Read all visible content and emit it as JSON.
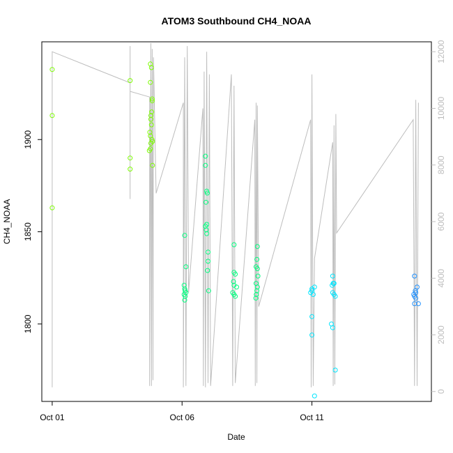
{
  "chart_data": {
    "type": "scatter",
    "title": "ATOM3 Southbound CH4_NOAA",
    "xlabel": "Date",
    "ylabel": "CH4_NOAA",
    "x_ticks": [
      {
        "day": 1,
        "label": "Oct 01"
      },
      {
        "day": 6,
        "label": "Oct 06"
      },
      {
        "day": 11,
        "label": "Oct 11"
      }
    ],
    "xlim": [
      0.6,
      15.6
    ],
    "ylim": [
      1758,
      1953
    ],
    "y_ticks": [
      1800,
      1850,
      1900
    ],
    "y2_label": "",
    "y2lim": [
      -350,
      12350
    ],
    "y2_ticks": [
      0,
      2000,
      4000,
      6000,
      8000,
      10000,
      12000
    ],
    "colors": {
      "early": "#7cfc00",
      "mid": "#00ff7f",
      "late": "#00e5ff",
      "end": "#1e90ff",
      "altitude_line": "#bdbdbd"
    },
    "points": [
      [
        1.0,
        1938
      ],
      [
        1.0,
        1913
      ],
      [
        1.0,
        1863
      ],
      [
        4.0,
        1932
      ],
      [
        4.0,
        1890
      ],
      [
        4.0,
        1884
      ],
      [
        4.78,
        1941
      ],
      [
        4.78,
        1931
      ],
      [
        4.82,
        1939
      ],
      [
        4.85,
        1922
      ],
      [
        4.85,
        1921
      ],
      [
        4.83,
        1915
      ],
      [
        4.8,
        1913
      ],
      [
        4.8,
        1911
      ],
      [
        4.82,
        1908
      ],
      [
        4.76,
        1904
      ],
      [
        4.78,
        1902
      ],
      [
        4.84,
        1900
      ],
      [
        4.86,
        1899
      ],
      [
        4.8,
        1898
      ],
      [
        4.78,
        1895
      ],
      [
        4.74,
        1894
      ],
      [
        4.86,
        1886
      ],
      [
        6.1,
        1848
      ],
      [
        6.15,
        1831
      ],
      [
        6.08,
        1821
      ],
      [
        6.1,
        1819
      ],
      [
        6.12,
        1818
      ],
      [
        6.15,
        1817
      ],
      [
        6.08,
        1816
      ],
      [
        6.12,
        1815
      ],
      [
        6.1,
        1813
      ],
      [
        6.9,
        1891
      ],
      [
        6.9,
        1886
      ],
      [
        6.95,
        1872
      ],
      [
        6.97,
        1871
      ],
      [
        6.92,
        1866
      ],
      [
        6.95,
        1854
      ],
      [
        6.9,
        1853
      ],
      [
        6.93,
        1851
      ],
      [
        6.95,
        1849
      ],
      [
        7.0,
        1839
      ],
      [
        7.0,
        1834
      ],
      [
        6.98,
        1829
      ],
      [
        7.02,
        1818
      ],
      [
        8.0,
        1843
      ],
      [
        8.0,
        1828
      ],
      [
        8.05,
        1827
      ],
      [
        7.98,
        1823
      ],
      [
        8.0,
        1821
      ],
      [
        8.1,
        1820
      ],
      [
        7.95,
        1817
      ],
      [
        8.0,
        1816
      ],
      [
        8.05,
        1815
      ],
      [
        8.9,
        1842
      ],
      [
        8.88,
        1835
      ],
      [
        8.85,
        1831
      ],
      [
        8.9,
        1830
      ],
      [
        8.92,
        1826
      ],
      [
        8.85,
        1822
      ],
      [
        8.9,
        1820
      ],
      [
        8.88,
        1818
      ],
      [
        8.86,
        1816
      ],
      [
        8.84,
        1814
      ],
      [
        11.0,
        1819
      ],
      [
        11.1,
        1820
      ],
      [
        11.0,
        1818
      ],
      [
        10.95,
        1817
      ],
      [
        11.05,
        1816
      ],
      [
        11.0,
        1804
      ],
      [
        11.0,
        1794
      ],
      [
        11.1,
        1761
      ],
      [
        11.8,
        1826
      ],
      [
        11.82,
        1822
      ],
      [
        11.85,
        1822
      ],
      [
        11.78,
        1821
      ],
      [
        11.8,
        1817
      ],
      [
        11.85,
        1816
      ],
      [
        11.9,
        1815
      ],
      [
        11.75,
        1800
      ],
      [
        11.8,
        1798
      ],
      [
        11.9,
        1775
      ],
      [
        14.95,
        1826
      ],
      [
        14.98,
        1818
      ],
      [
        15.0,
        1817
      ],
      [
        15.05,
        1820
      ],
      [
        14.92,
        1816
      ],
      [
        14.95,
        1815
      ],
      [
        15.0,
        1814
      ],
      [
        14.95,
        1811
      ],
      [
        15.1,
        1811
      ]
    ],
    "altitude": [
      [
        1.0,
        150
      ],
      [
        1.0,
        12000
      ],
      [
        4.0,
        10900
      ],
      [
        4.0,
        6800
      ],
      [
        4.0,
        12200
      ],
      [
        4.0,
        10600
      ],
      [
        4.75,
        10400
      ],
      [
        4.75,
        200
      ],
      [
        4.8,
        12300
      ],
      [
        4.82,
        200
      ],
      [
        4.85,
        12100
      ],
      [
        4.88,
        400
      ],
      [
        4.9,
        11800
      ],
      [
        5.0,
        7000
      ],
      [
        6.05,
        10200
      ],
      [
        6.05,
        150
      ],
      [
        6.1,
        11800
      ],
      [
        6.15,
        200
      ],
      [
        6.2,
        12200
      ],
      [
        6.25,
        3500
      ],
      [
        6.8,
        10000
      ],
      [
        6.82,
        200
      ],
      [
        6.85,
        11300
      ],
      [
        6.9,
        150
      ],
      [
        6.95,
        12000
      ],
      [
        7.0,
        300
      ],
      [
        7.05,
        11200
      ],
      [
        7.1,
        200
      ],
      [
        7.9,
        11200
      ],
      [
        7.95,
        200
      ],
      [
        8.0,
        10800
      ],
      [
        8.05,
        300
      ],
      [
        8.8,
        9600
      ],
      [
        8.82,
        200
      ],
      [
        8.85,
        10200
      ],
      [
        8.88,
        300
      ],
      [
        8.9,
        10100
      ],
      [
        8.95,
        3000
      ],
      [
        10.95,
        9600
      ],
      [
        10.97,
        150
      ],
      [
        11.0,
        11200
      ],
      [
        11.05,
        200
      ],
      [
        11.1,
        4700
      ],
      [
        11.8,
        8800
      ],
      [
        11.82,
        200
      ],
      [
        11.85,
        9400
      ],
      [
        11.88,
        250
      ],
      [
        11.92,
        9800
      ],
      [
        11.95,
        5600
      ],
      [
        14.9,
        9600
      ],
      [
        14.95,
        200
      ],
      [
        15.0,
        10300
      ],
      [
        15.05,
        200
      ],
      [
        15.1,
        10200
      ]
    ]
  }
}
